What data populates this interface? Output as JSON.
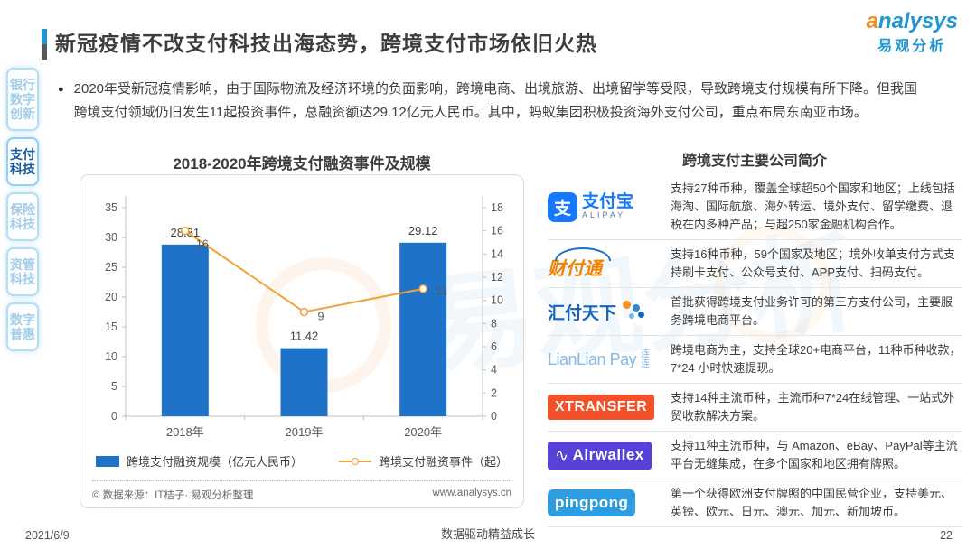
{
  "header": {
    "title": "新冠疫情不改支付科技出海态势，跨境支付市场依旧火热",
    "logo_en": "analysys",
    "logo_cn": "易观分析"
  },
  "sidebar": {
    "items": [
      {
        "label": "银行数字创新",
        "active": false
      },
      {
        "label": "支付科技",
        "active": true
      },
      {
        "label": "保险科技",
        "active": false
      },
      {
        "label": "资管科技",
        "active": false
      },
      {
        "label": "数字普惠",
        "active": false
      }
    ]
  },
  "intro": {
    "bullet": "●",
    "text": "2020年受新冠疫情影响，由于国际物流及经济环境的负面影响，跨境电商、出境旅游、出境留学等受限，导致跨境支付规模有所下降。但我国跨境支付领域仍旧发生11起投资事件，总融资额达29.12亿元人民币。其中，蚂蚁集团积极投资海外支付公司，重点布局东南亚市场。"
  },
  "chart_data": {
    "type": "combo",
    "title": "2018-2020年跨境支付融资事件及规模",
    "categories": [
      "2018年",
      "2019年",
      "2020年"
    ],
    "series": [
      {
        "name": "跨境支付融资规模（亿元人民币）",
        "type": "bar",
        "axis": "left",
        "values": [
          28.81,
          11.42,
          29.12
        ],
        "color": "#1e73c8"
      },
      {
        "name": "跨境支付融资事件（起）",
        "type": "line",
        "axis": "right",
        "values": [
          16,
          9,
          11
        ],
        "color": "#f0a33a"
      }
    ],
    "left_axis": {
      "min": 0,
      "max": 35,
      "step": 5
    },
    "right_axis": {
      "min": 0,
      "max": 18,
      "step": 2
    },
    "grid": false,
    "legend_position": "bottom",
    "source_left": "© 数据来源：IT桔子· 易观分析整理",
    "source_right": "www.analysys.cn"
  },
  "companies": {
    "title": "跨境支付主要公司简介",
    "rows": [
      {
        "logo_type": "alipay",
        "logo_text": "支付宝",
        "logo_sub": "ALIPAY",
        "desc": "支持27种币种，覆盖全球超50个国家和地区；上线包括海淘、国际航旅、海外转运、境外支付、留学缴费、退税在内多种产品；与超250家金融机构合作。"
      },
      {
        "logo_type": "tenpay",
        "logo_text": "财付通",
        "logo_sub": "",
        "desc": "支持16种币种，59个国家及地区；境外收单支付方式支持刷卡支付、公众号支付、APP支付、扫码支付。"
      },
      {
        "logo_type": "huifu",
        "logo_text": "汇付天下",
        "logo_sub": "",
        "desc": "首批获得跨境支付业务许可的第三方支付公司，主要服务跨境电商平台。"
      },
      {
        "logo_type": "lianlian",
        "logo_text": "LianLian Pay",
        "logo_sub": "连连",
        "desc": "跨境电商为主，支持全球20+电商平台，11种币种收款，7*24 小时快速提现。"
      },
      {
        "logo_type": "xtransfer",
        "logo_text": "XTRANSFER",
        "logo_sub": "",
        "desc": "支持14种主流币种，主流币种7*24在线管理、一站式外贸收款解决方案。"
      },
      {
        "logo_type": "airwallex",
        "logo_text": "Airwallex",
        "logo_sub": "",
        "desc": "支持11种主流币种，与 Amazon、eBay、PayPal等主流平台无缝集成，在多个国家和地区拥有牌照。"
      },
      {
        "logo_type": "pingpong",
        "logo_text": "pingpong",
        "logo_sub": "",
        "desc": "第一个获得欧洲支付牌照的中国民营企业，支持美元、英镑、欧元、日元、澳元、加元、新加坡币。"
      }
    ]
  },
  "watermark": {
    "text": "易观分析"
  },
  "footer": {
    "date": "2021/6/9",
    "slogan": "数据驱动精益成长",
    "page": "22"
  }
}
